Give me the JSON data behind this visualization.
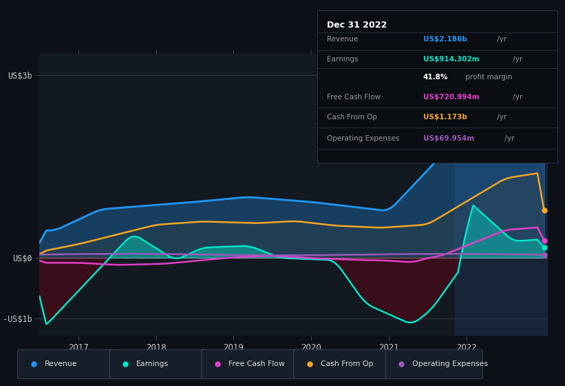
{
  "bg_color": "#0d1117",
  "plot_bg_color": "#131920",
  "highlight_bg_color": "#1a2535",
  "colors": {
    "revenue": "#2196f3",
    "earnings": "#00e5c8",
    "free_cash_flow": "#e040c8",
    "cash_from_op": "#f5a623",
    "operating_expenses": "#9b59b6"
  },
  "legend_items": [
    "Revenue",
    "Earnings",
    "Free Cash Flow",
    "Cash From Op",
    "Operating Expenses"
  ],
  "legend_colors": [
    "#2196f3",
    "#00e5c8",
    "#e040c8",
    "#f5a623",
    "#9b59b6"
  ],
  "info_title": "Dec 31 2022",
  "info_rows": [
    {
      "label": "Revenue",
      "value": "US$2.186b",
      "suffix": " /yr",
      "color": "#2196f3",
      "bold": true
    },
    {
      "label": "Earnings",
      "value": "US$914.302m",
      "suffix": " /yr",
      "color": "#00e5c8",
      "bold": true
    },
    {
      "label": "",
      "value": "41.8%",
      "suffix": " profit margin",
      "color": "#ffffff",
      "bold": true
    },
    {
      "label": "Free Cash Flow",
      "value": "US$720.994m",
      "suffix": " /yr",
      "color": "#e040c8",
      "bold": true
    },
    {
      "label": "Cash From Op",
      "value": "US$1.173b",
      "suffix": " /yr",
      "color": "#f5a623",
      "bold": true
    },
    {
      "label": "Operating Expenses",
      "value": "US$69.954m",
      "suffix": " /yr",
      "color": "#9b59b6",
      "bold": true
    }
  ]
}
